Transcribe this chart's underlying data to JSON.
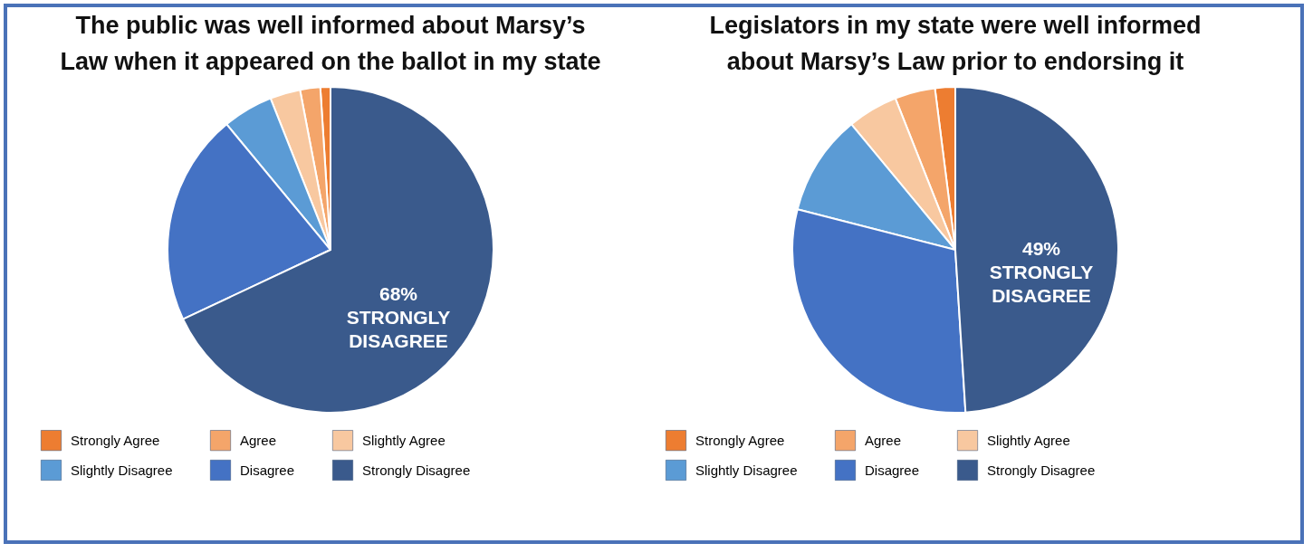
{
  "chart_data": [
    {
      "type": "pie",
      "title": "The public was well informed about Marsy’s Law when it appeared on the ballot in my state",
      "categories": [
        "Strongly Agree",
        "Agree",
        "Slightly Agree",
        "Slightly Disagree",
        "Disagree",
        "Strongly Disagree"
      ],
      "values": [
        1,
        2,
        3,
        5,
        21,
        68
      ],
      "colors": [
        "#ed7d31",
        "#f4a56a",
        "#f8c8a0",
        "#5b9bd5",
        "#4472c4",
        "#3a5a8c"
      ],
      "annotations": [
        "68%",
        "STRONGLY",
        "DISAGREE"
      ],
      "legend": "bottom"
    },
    {
      "type": "pie",
      "title": "Legislators in my state were well informed about Marsy’s Law prior to endorsing it",
      "categories": [
        "Strongly Agree",
        "Agree",
        "Slightly Agree",
        "Slightly Disagree",
        "Disagree",
        "Strongly Disagree"
      ],
      "values": [
        2,
        4,
        5,
        10,
        30,
        49
      ],
      "colors": [
        "#ed7d31",
        "#f4a56a",
        "#f8c8a0",
        "#5b9bd5",
        "#4472c4",
        "#3a5a8c"
      ],
      "annotations": [
        "49%",
        "STRONGLY",
        "DISAGREE"
      ],
      "legend": "bottom"
    }
  ]
}
